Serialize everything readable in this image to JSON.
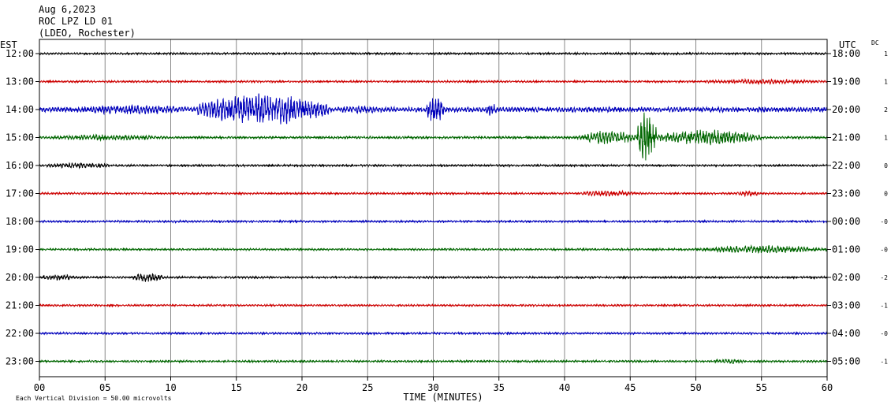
{
  "header": {
    "date": "Aug 6,2023",
    "station": "ROC LPZ LD 01",
    "network": "(LDEO, Rochester)"
  },
  "labels": {
    "left_zone": "EST",
    "right_zone": "UTC",
    "dc_header": "DC",
    "xlabel": "TIME (MINUTES)",
    "footer_note": "Each Vertical Division =   50.00 microvolts"
  },
  "chart_data": {
    "type": "line",
    "xlabel": "TIME (MINUTES)",
    "xlim": [
      0,
      60
    ],
    "x_ticks": [
      "00",
      "05",
      "10",
      "15",
      "20",
      "25",
      "30",
      "35",
      "40",
      "45",
      "50",
      "55",
      "60"
    ],
    "grid": "vertical lines every 5 minutes",
    "trace_colors": [
      "#000000",
      "#cc0000",
      "#0000bb",
      "#006600"
    ],
    "rows": [
      {
        "est": "12:00",
        "utc": "18:00",
        "dc": "1",
        "amp": 1,
        "events": []
      },
      {
        "est": "13:00",
        "utc": "19:00",
        "dc": "1",
        "amp": 1,
        "events": [
          {
            "start": 50.5,
            "end": 60,
            "peak": 2.5
          }
        ]
      },
      {
        "est": "14:00",
        "utc": "20:00",
        "dc": "2",
        "amp": 2.5,
        "events": [
          {
            "start": 2,
            "end": 12,
            "peak": 5
          },
          {
            "start": 12,
            "end": 22,
            "peak": 16
          },
          {
            "start": 22,
            "end": 27,
            "peak": 4
          },
          {
            "start": 29.5,
            "end": 30.8,
            "peak": 16
          },
          {
            "start": 34,
            "end": 34.8,
            "peak": 8
          },
          {
            "start": 36,
            "end": 48,
            "peak": 3
          }
        ]
      },
      {
        "est": "15:00",
        "utc": "21:00",
        "dc": "1",
        "amp": 1.2,
        "events": [
          {
            "start": 0,
            "end": 10,
            "peak": 3
          },
          {
            "start": 41,
            "end": 45.5,
            "peak": 7
          },
          {
            "start": 45.5,
            "end": 47,
            "peak": 26
          },
          {
            "start": 47,
            "end": 55,
            "peak": 8
          }
        ]
      },
      {
        "est": "16:00",
        "utc": "22:00",
        "dc": "0",
        "amp": 1,
        "events": [
          {
            "start": 0,
            "end": 6,
            "peak": 2.5
          }
        ]
      },
      {
        "est": "17:00",
        "utc": "23:00",
        "dc": "0",
        "amp": 1,
        "events": [
          {
            "start": 41,
            "end": 46,
            "peak": 3
          },
          {
            "start": 53,
            "end": 55,
            "peak": 3
          }
        ]
      },
      {
        "est": "18:00",
        "utc": "00:00",
        "dc": "-0",
        "amp": 1,
        "events": []
      },
      {
        "est": "19:00",
        "utc": "01:00",
        "dc": "-0",
        "amp": 1,
        "events": [
          {
            "start": 50,
            "end": 60,
            "peak": 4
          }
        ]
      },
      {
        "est": "20:00",
        "utc": "02:00",
        "dc": "-2",
        "amp": 1,
        "events": [
          {
            "start": 0,
            "end": 3,
            "peak": 3
          },
          {
            "start": 7,
            "end": 9.5,
            "peak": 4.5
          }
        ]
      },
      {
        "est": "21:00",
        "utc": "03:00",
        "dc": "-1",
        "amp": 1,
        "events": []
      },
      {
        "est": "22:00",
        "utc": "04:00",
        "dc": "-0",
        "amp": 1,
        "events": []
      },
      {
        "est": "23:00",
        "utc": "05:00",
        "dc": "-1",
        "amp": 1,
        "events": [
          {
            "start": 51,
            "end": 54,
            "peak": 2.5
          }
        ]
      }
    ]
  }
}
